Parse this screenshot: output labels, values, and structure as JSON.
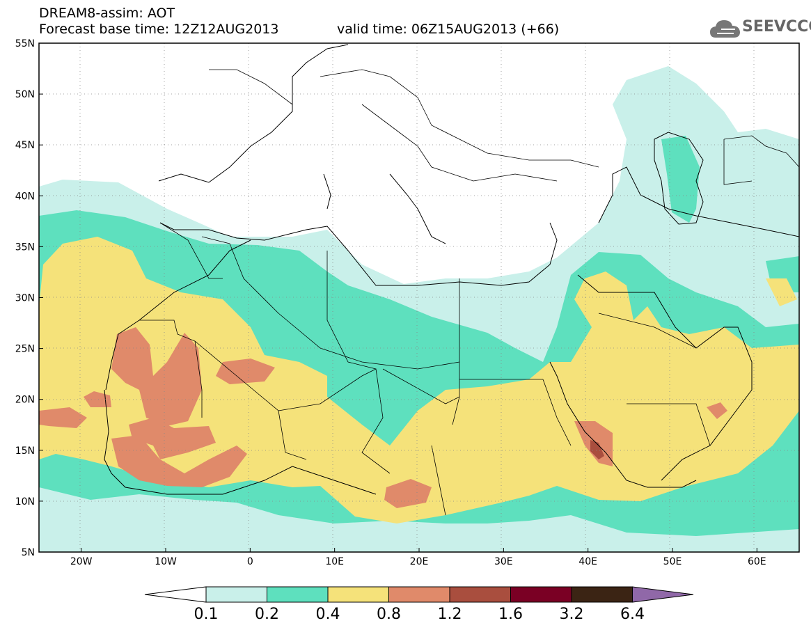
{
  "title": {
    "line1": "DREAM8-assim: AOT",
    "line2": "Forecast base time: 12Z12AUG2013",
    "valid": "valid time: 06Z15AUG2013 (+66)"
  },
  "logo": {
    "text": "SEEVCCC",
    "icon": "cloud-icon"
  },
  "map": {
    "lon_range": [
      -25,
      65
    ],
    "lat_range": [
      5,
      55
    ],
    "lon_ticks": [
      "20W",
      "10W",
      "0",
      "10E",
      "20E",
      "30E",
      "40E",
      "50E",
      "60E"
    ],
    "lat_ticks": [
      "5N",
      "10N",
      "15N",
      "20N",
      "25N",
      "30N",
      "35N",
      "40N",
      "45N",
      "50N",
      "55N"
    ],
    "grid": "dotted",
    "variable": "AOT"
  },
  "colorbar": {
    "labels": [
      "0.1",
      "0.2",
      "0.4",
      "0.8",
      "1.2",
      "1.6",
      "3.2",
      "6.4"
    ],
    "colors": [
      "#ffffff",
      "#c9f0ea",
      "#5ee0be",
      "#f5e27a",
      "#e08a6a",
      "#a94e3e",
      "#7a0024",
      "#3b2414",
      "#9068a8"
    ]
  },
  "colors": {
    "level1": "#c9f0ea",
    "level2": "#5ee0be",
    "level3": "#f5e27a",
    "level4": "#e08a6a",
    "level5": "#a94e3e"
  }
}
